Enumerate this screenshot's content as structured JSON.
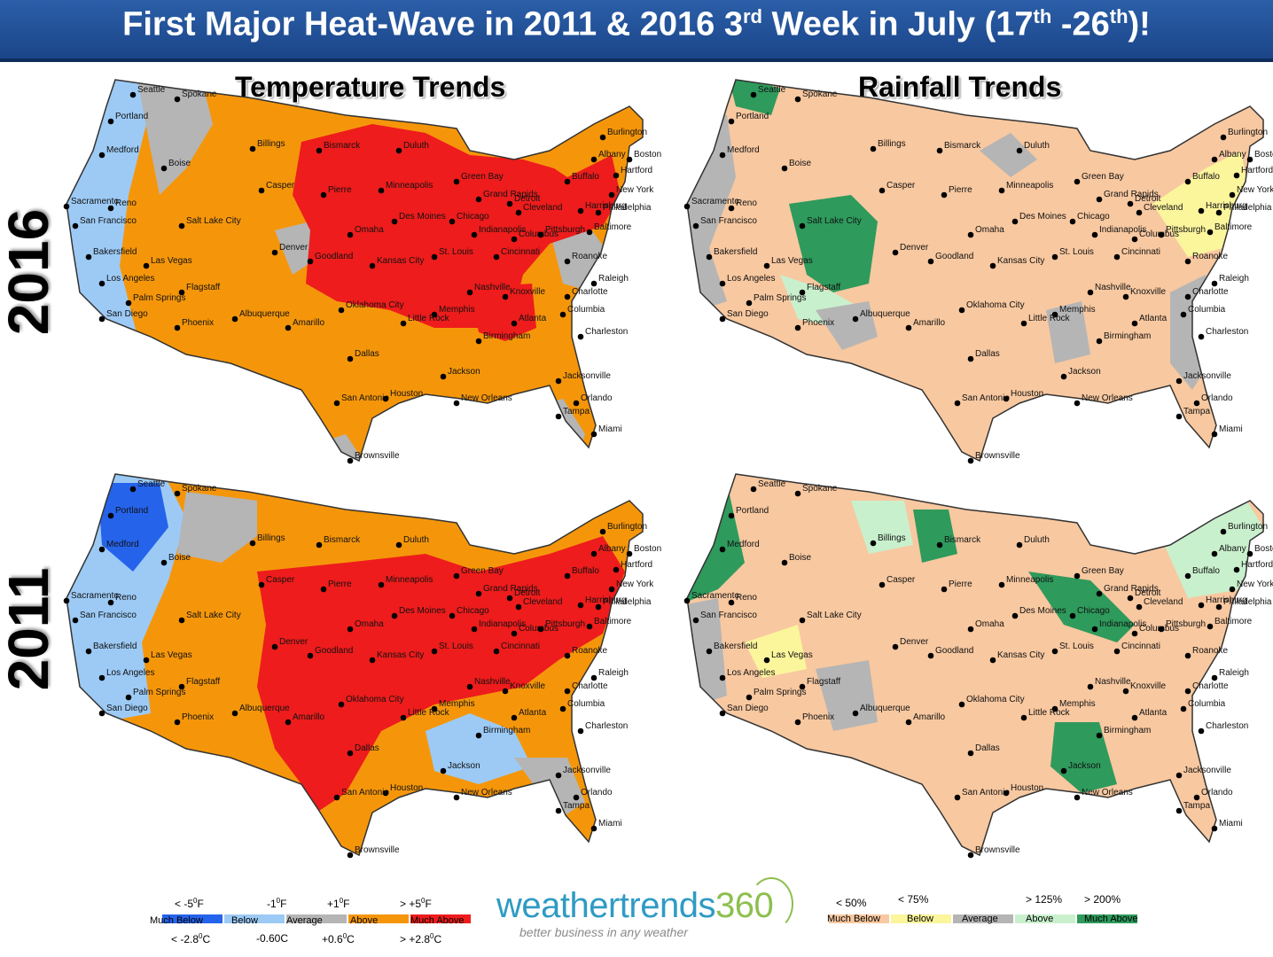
{
  "banner": {
    "title_a": "First Major Heat-Wave in 2011 & 2016 3",
    "title_sup1": "rd",
    "title_b": " Week in July (17",
    "title_sup2": "th",
    "title_c": " -26",
    "title_sup3": "th",
    "title_d": ")!"
  },
  "columns": {
    "temperature": "Temperature Trends",
    "rainfall": "Rainfall Trends"
  },
  "years": [
    "2016",
    "2011"
  ],
  "colors": {
    "banner": "#1f4e96",
    "much_below_temp": "#2563eb",
    "below_temp": "#9ccaf5",
    "average": "#b5b5b5",
    "above_temp": "#f5960a",
    "much_above_temp": "#ee1c1c",
    "much_below_rain": "#f8c8a0",
    "below_rain": "#fbf59c",
    "above_rain": "#c9f0cd",
    "much_above_rain": "#2e9a5c"
  },
  "cities": [
    "Seattle",
    "Spokane",
    "Portland",
    "Medford",
    "Boise",
    "Sacramento",
    "Reno",
    "San Francisco",
    "Salt Lake City",
    "Billings",
    "Casper",
    "Bismarck",
    "Duluth",
    "Minneapolis",
    "Pierre",
    "Green Bay",
    "Grand Rapids",
    "Detroit",
    "Chicago",
    "Des Moines",
    "Omaha",
    "Denver",
    "Goodland",
    "Kansas City",
    "St. Louis",
    "Indianapolis",
    "Cleveland",
    "Columbus",
    "Cincinnati",
    "Pittsburgh",
    "Buffalo",
    "Albany",
    "Burlington",
    "Boston",
    "Hartford",
    "New York",
    "Philadelphia",
    "Baltimore",
    "Harrisburg",
    "Roanoke",
    "Raleigh",
    "Charlotte",
    "Columbia",
    "Charleston",
    "Atlanta",
    "Birmingham",
    "Knoxville",
    "Nashville",
    "Memphis",
    "Little Rock",
    "Oklahoma City",
    "Amarillo",
    "Albuquerque",
    "Flagstaff",
    "Phoenix",
    "Las Vegas",
    "Bakersfield",
    "Los Angeles",
    "Palm Springs",
    "San Diego",
    "Dallas",
    "Houston",
    "San Antonio",
    "Jackson",
    "New Orleans",
    "Jacksonville",
    "Orlando",
    "Tampa",
    "Miami",
    "Brownsville"
  ],
  "temp_legend": {
    "top_labels": [
      {
        "main": "< -5",
        "sup": "0",
        "unit": "F"
      },
      {
        "main": "-1",
        "sup": "0",
        "unit": "F"
      },
      {
        "main": "+1",
        "sup": "0",
        "unit": "F"
      },
      {
        "main": "> +5",
        "sup": "0",
        "unit": "F"
      }
    ],
    "classes": [
      "Much Below",
      "Below",
      "Average",
      "Above",
      "Much Above"
    ],
    "bottom_labels": [
      {
        "main": "< -2.8",
        "sup": "0",
        "unit": "C"
      },
      {
        "main": "-0.60C",
        "sup": "",
        "unit": ""
      },
      {
        "main": "+0.6",
        "sup": "0",
        "unit": "C"
      },
      {
        "main": "> +2.8",
        "sup": "0",
        "unit": "C"
      }
    ]
  },
  "rain_legend": {
    "top_labels": [
      "< 50%",
      "< 75%",
      "> 125%",
      "> 200%"
    ],
    "classes": [
      "Much Below",
      "Below",
      "Average",
      "Above",
      "Much Above"
    ]
  },
  "logo": {
    "word": "weathertrends",
    "num": "360",
    "tagline": "better business in any weather"
  }
}
